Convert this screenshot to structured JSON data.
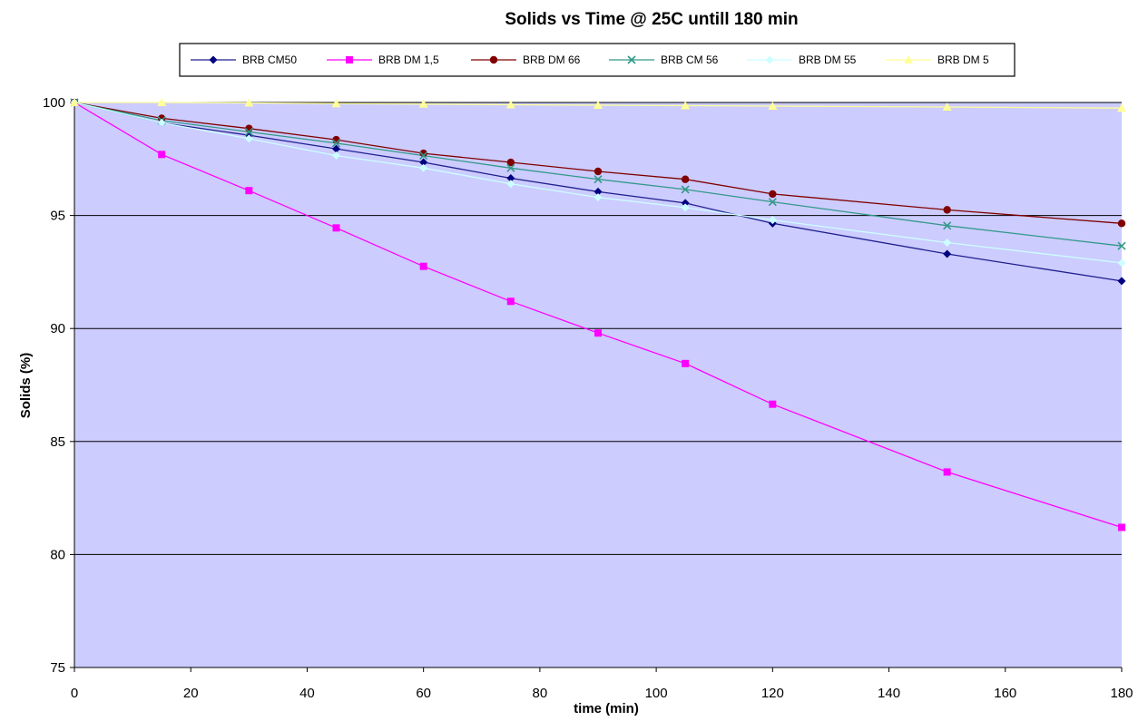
{
  "chart_data": {
    "type": "line",
    "title": "Solids vs Time  @ 25C untill 180 min",
    "xlabel": "time (min)",
    "ylabel": "Solids (%)",
    "xlim": [
      0,
      180
    ],
    "ylim": [
      75,
      100
    ],
    "xticks": [
      0,
      20,
      40,
      60,
      80,
      100,
      120,
      140,
      160,
      180
    ],
    "yticks": [
      75,
      80,
      85,
      90,
      95,
      100
    ],
    "grid": "horizontal major gridlines",
    "legend_position": "top",
    "plot_background": "#ccccff",
    "x": [
      0,
      15,
      30,
      45,
      60,
      75,
      90,
      105,
      120,
      150,
      180
    ],
    "series": [
      {
        "name": "BRB CM50",
        "color": "#000080",
        "line_color": "#1f1f8f",
        "marker": "diamond",
        "values": [
          100,
          99.1,
          98.55,
          97.95,
          97.35,
          96.65,
          96.05,
          95.55,
          94.65,
          93.3,
          92.1
        ]
      },
      {
        "name": "BRB DM 1,5",
        "color": "#ff00ff",
        "line_color": "#ff00ff",
        "marker": "square",
        "values": [
          100,
          97.7,
          96.1,
          94.45,
          92.75,
          91.2,
          89.8,
          88.45,
          86.65,
          83.65,
          81.2
        ]
      },
      {
        "name": "BRB DM 66",
        "color": "#800000",
        "line_color": "#800000",
        "marker": "circle",
        "values": [
          100,
          99.3,
          98.85,
          98.35,
          97.75,
          97.35,
          96.95,
          96.6,
          95.95,
          95.25,
          94.65
        ]
      },
      {
        "name": "BRB CM 56",
        "color": "#339988",
        "line_color": "#339988",
        "marker": "x",
        "values": [
          100,
          99.2,
          98.7,
          98.2,
          97.65,
          97.1,
          96.6,
          96.15,
          95.6,
          94.55,
          93.65
        ]
      },
      {
        "name": "BRB DM 55",
        "color": "#ccffff",
        "line_color": "#ccffff",
        "marker": "diamond",
        "values": [
          100,
          99.1,
          98.4,
          97.65,
          97.1,
          96.4,
          95.8,
          95.35,
          94.8,
          93.8,
          92.9
        ]
      },
      {
        "name": "BRB DM 5",
        "color": "#ffff99",
        "line_color": "#ffff99",
        "marker": "triangle",
        "values": [
          100,
          100,
          99.98,
          99.95,
          99.93,
          99.9,
          99.88,
          99.86,
          99.84,
          99.8,
          99.75
        ]
      }
    ]
  }
}
